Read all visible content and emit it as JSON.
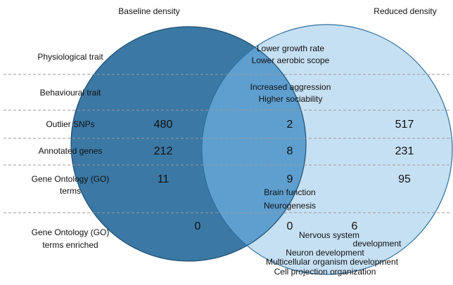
{
  "sets": {
    "left": "Baseline density",
    "right": "Reduced density"
  },
  "rows": [
    {
      "label": [
        "Physiological trait"
      ],
      "overlap_notes": [
        "Lower growth rate",
        "Lower aerobic scope"
      ]
    },
    {
      "label": [
        "Behavioural trait"
      ],
      "overlap_notes": [
        "Increased aggression",
        "Higher sociability"
      ]
    },
    {
      "label": [
        "Outlier SNPs"
      ],
      "left": 480,
      "overlap": 2,
      "right": 517
    },
    {
      "label": [
        "Annotated genes"
      ],
      "left": 212,
      "overlap": 8,
      "right": 231
    },
    {
      "label": [
        "Gene Ontology (GO)",
        "terms"
      ],
      "left": 11,
      "overlap": 9,
      "right": 95,
      "overlap_notes": [
        "Brain function",
        "Neurogenesis"
      ]
    },
    {
      "label": [
        "Gene Ontology (GO)",
        "terms enriched"
      ],
      "left": 0,
      "overlap": 0,
      "right": 6,
      "right_notes": [
        "Nervous system",
        "development",
        "Neuron development",
        "Multicellular organism development",
        "Cell projection organization"
      ]
    }
  ]
}
